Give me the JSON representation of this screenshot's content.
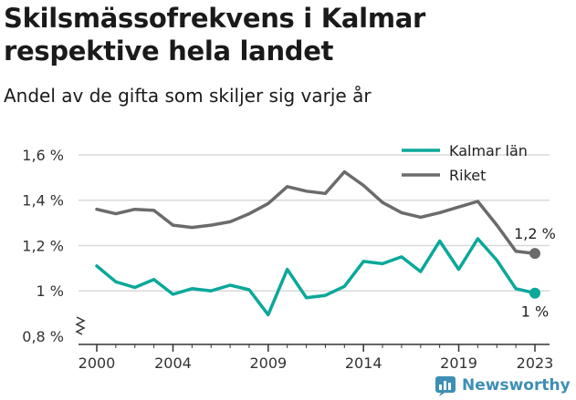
{
  "title": "Skilsmässofrekvens i Kalmar respektive hela landet",
  "subtitle": "Andel av de gifta som skiljer sig varje år",
  "brand": "Newsworthy",
  "colors": {
    "kalmar": "#0aa89a",
    "riket": "#6b6b6b",
    "grid": "#d9d9d9",
    "axis": "#333333",
    "brand": "#3d8fb4"
  },
  "chart_data": {
    "type": "line",
    "x": [
      2000,
      2001,
      2002,
      2003,
      2004,
      2005,
      2006,
      2007,
      2008,
      2009,
      2010,
      2011,
      2012,
      2013,
      2014,
      2015,
      2016,
      2017,
      2018,
      2019,
      2020,
      2021,
      2022,
      2023
    ],
    "x_ticks": [
      "2000",
      "2004",
      "2009",
      "2014",
      "2019",
      "2023"
    ],
    "y_ticks": [
      "0,8 %",
      "1 %",
      "1,2 %",
      "1,4 %",
      "1,6 %"
    ],
    "y_tick_values": [
      0.8,
      1.0,
      1.2,
      1.4,
      1.6
    ],
    "ylim": [
      0.8,
      1.64
    ],
    "y_axis_break": true,
    "legend": "top-right",
    "series": [
      {
        "name": "Kalmar län",
        "values": [
          1.11,
          1.04,
          1.015,
          1.05,
          0.985,
          1.01,
          1.0,
          1.025,
          1.005,
          0.895,
          1.095,
          0.97,
          0.98,
          1.02,
          1.13,
          1.12,
          1.15,
          1.085,
          1.22,
          1.095,
          1.23,
          1.135,
          1.01,
          0.99
        ],
        "end_label": "1 %"
      },
      {
        "name": "Riket",
        "values": [
          1.36,
          1.34,
          1.36,
          1.355,
          1.29,
          1.28,
          1.29,
          1.305,
          1.34,
          1.385,
          1.46,
          1.44,
          1.43,
          1.525,
          1.465,
          1.39,
          1.345,
          1.325,
          1.345,
          1.37,
          1.395,
          1.29,
          1.175,
          1.165
        ],
        "end_label": "1,2 %"
      }
    ]
  }
}
